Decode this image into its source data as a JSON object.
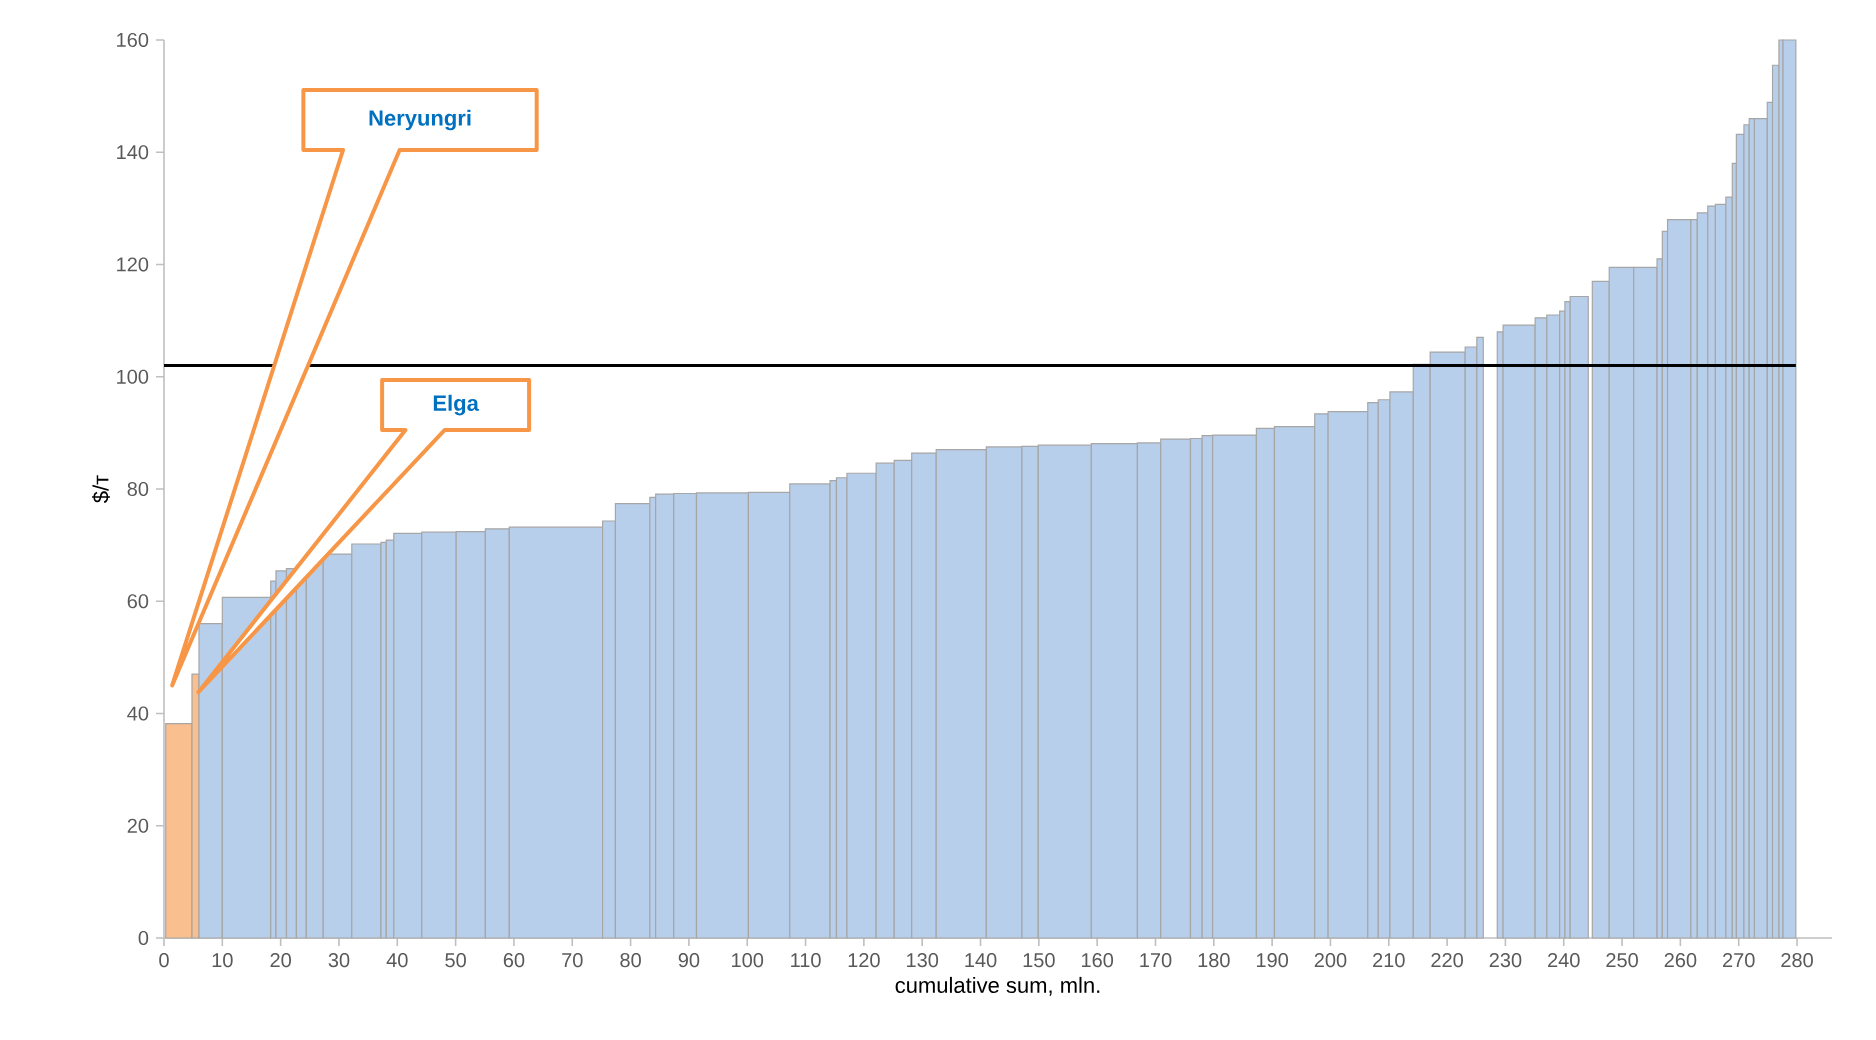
{
  "chart_data": {
    "type": "histogram",
    "xlabel": "cumulative sum, mln.",
    "ylabel": "$/т",
    "bins": [
      0.3,
      4.8,
      6.0,
      10,
      18.3,
      19.2,
      21,
      22.7,
      24.4,
      27.3,
      32.2,
      37.2,
      38.1,
      39.4,
      44.2,
      50.1,
      55.1,
      59.2,
      75.2,
      77.4,
      83.3,
      84.3,
      87.4,
      91.3,
      100.2,
      107.3,
      114.2,
      115.3,
      117.1,
      122.1,
      125.2,
      128.2,
      132.4,
      141,
      147.1,
      149.9,
      159,
      166.9,
      170.9,
      176,
      178,
      179.8,
      187.3,
      190.4,
      197.3,
      199.6,
      206.4,
      208.2,
      210.2,
      214.2,
      217.1,
      223.1,
      225.1,
      226.2,
      228.6,
      229.6,
      235.1,
      237.1,
      239.3,
      240.2,
      241.1,
      244.2,
      244.9,
      247.8,
      252,
      256,
      256.9,
      257.8,
      261.8,
      262.9,
      264.7,
      266,
      267.8,
      268.9,
      269.6,
      270.9,
      271.8,
      272.7,
      274.9,
      275.8,
      276.9,
      277.6,
      279.8
    ],
    "values": [
      38.2,
      47,
      56,
      60.7,
      63.6,
      65.4,
      65.8,
      66.4,
      67,
      68.4,
      70.2,
      70.5,
      70.9,
      72.1,
      72.3,
      72.4,
      72.9,
      73.2,
      74.3,
      77.4,
      78.5,
      79.1,
      79.2,
      79.3,
      79.4,
      80.9,
      81.5,
      82,
      82.8,
      84.6,
      85.1,
      86.4,
      87,
      87.5,
      87.6,
      87.8,
      88.1,
      88.2,
      88.9,
      89,
      89.5,
      89.6,
      90.8,
      91.1,
      93.4,
      93.8,
      95.4,
      95.9,
      97.3,
      102.2,
      104.4,
      105.3,
      107,
      null,
      108,
      109.2,
      110.5,
      111,
      111.7,
      113.4,
      114.3,
      null,
      117,
      119.5,
      119.5,
      121,
      125.9,
      128,
      128,
      129.2,
      130.4,
      130.7,
      132,
      138,
      143.2,
      144.9,
      146,
      146,
      148.9,
      155.5,
      160,
      160
    ],
    "colors": [
      "#f9bf8f",
      "#f9bf8f",
      "#b8cfec",
      "#b8cfec",
      "#b8cfec",
      "#b8cfec",
      "#b8cfec",
      "#b8cfec",
      "#b8cfec",
      "#b8cfec",
      "#b8cfec",
      "#b8cfec",
      "#b8cfec",
      "#b8cfec",
      "#b8cfec",
      "#b8cfec",
      "#b8cfec",
      "#b8cfec",
      "#b8cfec",
      "#b8cfec",
      "#b8cfec",
      "#b8cfec",
      "#b8cfec",
      "#b8cfec",
      "#b8cfec",
      "#b8cfec",
      "#b8cfec",
      "#b8cfec",
      "#b8cfec",
      "#b8cfec",
      "#b8cfec",
      "#b8cfec",
      "#b8cfec",
      "#b8cfec",
      "#b8cfec",
      "#b8cfec",
      "#b8cfec",
      "#b8cfec",
      "#b8cfec",
      "#b8cfec",
      "#b8cfec",
      "#b8cfec",
      "#b8cfec",
      "#b8cfec",
      "#b8cfec",
      "#b8cfec",
      "#b8cfec",
      "#b8cfec",
      "#b8cfec",
      "#b8cfec",
      "#b8cfec",
      "#b8cfec",
      "#b8cfec",
      "#b8cfec",
      "#b8cfec",
      "#b8cfec",
      "#b8cfec",
      "#b8cfec",
      "#b8cfec",
      "#b8cfec",
      "#b8cfec",
      "#b8cfec",
      "#b8cfec",
      "#b8cfec",
      "#b8cfec",
      "#b8cfec",
      "#b8cfec",
      "#b8cfec",
      "#b8cfec",
      "#b8cfec",
      "#b8cfec",
      "#b8cfec",
      "#b8cfec",
      "#b8cfec",
      "#b8cfec",
      "#b8cfec",
      "#b8cfec",
      "#b8cfec",
      "#b8cfec",
      "#b8cfec",
      "#b8cfec",
      "#b8cfec"
    ],
    "xlim": [
      0,
      286
    ],
    "ylim": [
      0,
      160
    ],
    "xticks": [
      0,
      10,
      20,
      30,
      40,
      50,
      60,
      70,
      80,
      90,
      100,
      110,
      120,
      130,
      140,
      150,
      160,
      170,
      180,
      190,
      200,
      210,
      220,
      230,
      240,
      250,
      260,
      270,
      280
    ],
    "yticks": [
      0,
      20,
      40,
      60,
      80,
      100,
      120,
      140,
      160
    ],
    "ref_lines": [
      {
        "axis": "y",
        "value": 102,
        "color": "#000000"
      }
    ],
    "annotations": [
      "Neryungri",
      "Elga"
    ],
    "grid": false
  }
}
